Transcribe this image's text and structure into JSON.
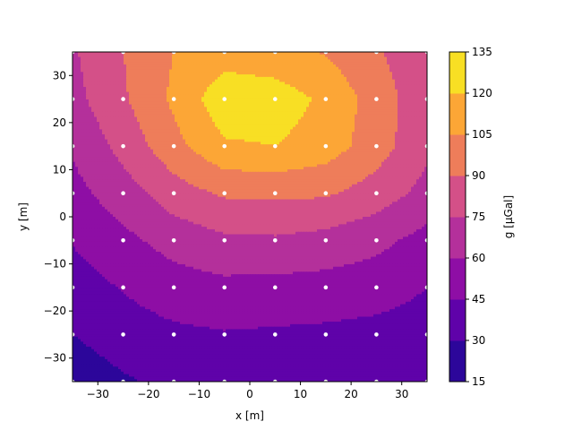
{
  "chart_data": {
    "type": "heatmap",
    "subtype": "filled-contour",
    "xlabel": "x [m]",
    "ylabel": "y [m]",
    "colorbar_label": "g [µGal]",
    "xlim": [
      -35,
      35
    ],
    "ylim": [
      -35,
      35
    ],
    "x_ticks": [
      -30,
      -20,
      -10,
      0,
      10,
      20,
      30
    ],
    "y_ticks": [
      -30,
      -20,
      -10,
      0,
      10,
      20,
      30
    ],
    "colorbar_levels": [
      15,
      30,
      45,
      60,
      75,
      90,
      105,
      120,
      135
    ],
    "colorbar_colors": [
      "#2c069a",
      "#5f02a9",
      "#8e0ea5",
      "#b4309b",
      "#d45088",
      "#ee7d5a",
      "#fca636",
      "#f8df24"
    ],
    "grid": false,
    "grid_x": [
      -35,
      -25,
      -15,
      -5,
      5,
      15,
      25,
      35
    ],
    "grid_y": [
      -35,
      -25,
      -15,
      -5,
      5,
      15,
      25,
      35
    ],
    "z": [
      [
        20,
        28,
        34,
        37,
        37,
        36,
        35,
        34
      ],
      [
        30,
        38,
        42,
        44,
        43,
        42,
        40,
        38
      ],
      [
        38,
        46,
        53,
        56,
        55,
        54,
        52,
        45
      ],
      [
        46,
        56,
        66,
        72,
        73,
        70,
        64,
        55
      ],
      [
        55,
        68,
        83,
        92,
        93,
        92,
        83,
        70
      ],
      [
        62,
        80,
        100,
        118,
        120,
        113,
        97,
        78
      ],
      [
        70,
        88,
        108,
        130,
        128,
        117,
        98,
        80
      ],
      [
        73,
        90,
        105,
        113,
        110,
        104,
        92,
        78
      ]
    ],
    "sample_points_note": ""
  }
}
